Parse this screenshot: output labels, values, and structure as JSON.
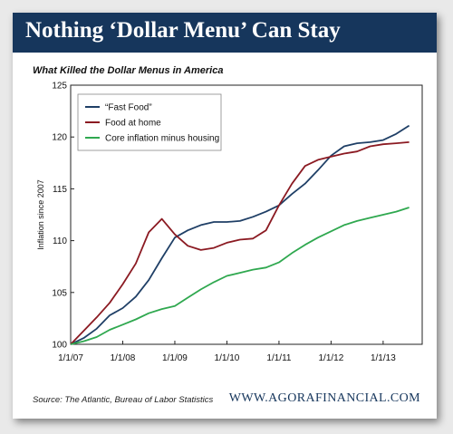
{
  "banner": {
    "title": "Nothing ‘Dollar Menu’ Can Stay"
  },
  "footer": {
    "source": "Source: The Atlantic, Bureau of Labor Statistics",
    "brand": "WWW.AGORAFINANCIAL.COM"
  },
  "colors": {
    "banner": "#16365c",
    "fast_food": "#1f3f66",
    "food_at_home": "#8b1a22",
    "core": "#2fa84f"
  },
  "chart_data": {
    "type": "line",
    "title": "What Killed the Dollar Menus in America",
    "xlabel": "",
    "ylabel": "Inflation since 2007",
    "ylim": [
      100,
      125
    ],
    "yticks": [
      100,
      105,
      110,
      115,
      120,
      125
    ],
    "xlim": [
      2007.0,
      2013.75
    ],
    "xtick_labels": [
      "1/1/07",
      "1/1/08",
      "1/1/09",
      "1/1/10",
      "1/1/11",
      "1/1/12",
      "1/1/13"
    ],
    "grid": false,
    "legend": "top-left",
    "series": [
      {
        "name": "“Fast Food”",
        "color": "#1f3f66",
        "points": [
          [
            2007.0,
            100.0
          ],
          [
            2007.25,
            100.6
          ],
          [
            2007.5,
            101.5
          ],
          [
            2007.75,
            102.8
          ],
          [
            2008.0,
            103.5
          ],
          [
            2008.25,
            104.6
          ],
          [
            2008.5,
            106.2
          ],
          [
            2008.75,
            108.3
          ],
          [
            2009.0,
            110.3
          ],
          [
            2009.25,
            111.0
          ],
          [
            2009.5,
            111.5
          ],
          [
            2009.75,
            111.8
          ],
          [
            2010.0,
            111.8
          ],
          [
            2010.25,
            111.9
          ],
          [
            2010.5,
            112.3
          ],
          [
            2010.75,
            112.8
          ],
          [
            2011.0,
            113.4
          ],
          [
            2011.25,
            114.5
          ],
          [
            2011.5,
            115.5
          ],
          [
            2011.75,
            116.8
          ],
          [
            2012.0,
            118.2
          ],
          [
            2012.25,
            119.1
          ],
          [
            2012.5,
            119.4
          ],
          [
            2012.75,
            119.5
          ],
          [
            2013.0,
            119.7
          ],
          [
            2013.25,
            120.3
          ],
          [
            2013.5,
            121.1
          ]
        ]
      },
      {
        "name": "Food at home",
        "color": "#8b1a22",
        "points": [
          [
            2007.0,
            100.0
          ],
          [
            2007.25,
            101.3
          ],
          [
            2007.5,
            102.6
          ],
          [
            2007.75,
            104.0
          ],
          [
            2008.0,
            105.8
          ],
          [
            2008.25,
            107.8
          ],
          [
            2008.5,
            110.8
          ],
          [
            2008.75,
            112.1
          ],
          [
            2009.0,
            110.6
          ],
          [
            2009.25,
            109.5
          ],
          [
            2009.5,
            109.1
          ],
          [
            2009.75,
            109.3
          ],
          [
            2010.0,
            109.8
          ],
          [
            2010.25,
            110.1
          ],
          [
            2010.5,
            110.2
          ],
          [
            2010.75,
            111.0
          ],
          [
            2011.0,
            113.4
          ],
          [
            2011.25,
            115.5
          ],
          [
            2011.5,
            117.2
          ],
          [
            2011.75,
            117.8
          ],
          [
            2012.0,
            118.1
          ],
          [
            2012.25,
            118.4
          ],
          [
            2012.5,
            118.6
          ],
          [
            2012.75,
            119.1
          ],
          [
            2013.0,
            119.3
          ],
          [
            2013.25,
            119.4
          ],
          [
            2013.5,
            119.5
          ]
        ]
      },
      {
        "name": "Core inflation minus housing",
        "color": "#2fa84f",
        "points": [
          [
            2007.0,
            100.0
          ],
          [
            2007.25,
            100.3
          ],
          [
            2007.5,
            100.7
          ],
          [
            2007.75,
            101.4
          ],
          [
            2008.0,
            101.9
          ],
          [
            2008.25,
            102.4
          ],
          [
            2008.5,
            103.0
          ],
          [
            2008.75,
            103.4
          ],
          [
            2009.0,
            103.7
          ],
          [
            2009.25,
            104.5
          ],
          [
            2009.5,
            105.3
          ],
          [
            2009.75,
            106.0
          ],
          [
            2010.0,
            106.6
          ],
          [
            2010.25,
            106.9
          ],
          [
            2010.5,
            107.2
          ],
          [
            2010.75,
            107.4
          ],
          [
            2011.0,
            107.9
          ],
          [
            2011.25,
            108.8
          ],
          [
            2011.5,
            109.6
          ],
          [
            2011.75,
            110.3
          ],
          [
            2012.0,
            110.9
          ],
          [
            2012.25,
            111.5
          ],
          [
            2012.5,
            111.9
          ],
          [
            2012.75,
            112.2
          ],
          [
            2013.0,
            112.5
          ],
          [
            2013.25,
            112.8
          ],
          [
            2013.5,
            113.2
          ]
        ]
      }
    ]
  }
}
